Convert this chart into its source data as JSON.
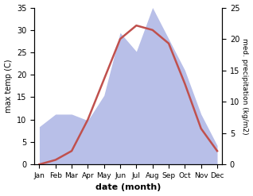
{
  "months": [
    "Jan",
    "Feb",
    "Mar",
    "Apr",
    "May",
    "Jun",
    "Jul",
    "Aug",
    "Sep",
    "Oct",
    "Nov",
    "Dec"
  ],
  "temperature": [
    0,
    1,
    3,
    10,
    19,
    28,
    31,
    30,
    27,
    18,
    8,
    3
  ],
  "precipitation": [
    6,
    8,
    8,
    7,
    11,
    21,
    18,
    25,
    20,
    15,
    8,
    3
  ],
  "temp_color": "#c0504d",
  "precip_fill_color": "#b8bfe8",
  "temp_ylim": [
    0,
    35
  ],
  "precip_ylim": [
    0,
    25
  ],
  "xlabel": "date (month)",
  "ylabel_left": "max temp (C)",
  "ylabel_right": "med. precipitation (kg/m2)",
  "temp_yticks": [
    0,
    5,
    10,
    15,
    20,
    25,
    30,
    35
  ],
  "precip_yticks": [
    0,
    5,
    10,
    15,
    20,
    25
  ],
  "background_color": "#ffffff"
}
